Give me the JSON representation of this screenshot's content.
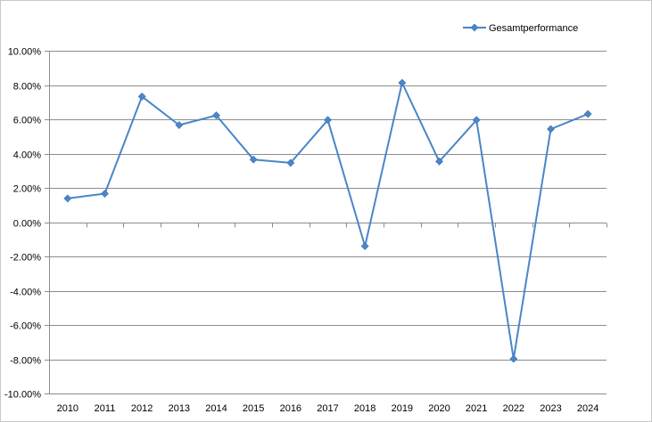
{
  "chart_data": {
    "type": "line",
    "title": "",
    "xlabel": "",
    "ylabel": "",
    "x": [
      "2010",
      "2011",
      "2012",
      "2013",
      "2014",
      "2015",
      "2016",
      "2017",
      "2018",
      "2019",
      "2020",
      "2021",
      "2022",
      "2023",
      "2024"
    ],
    "series": [
      {
        "name": "Gesamtperformance",
        "color": "#4a86c8",
        "marker": "diamond",
        "values": [
          1.38,
          1.66,
          7.33,
          5.66,
          6.23,
          3.65,
          3.46,
          5.96,
          -1.4,
          8.13,
          3.54,
          5.96,
          -7.98,
          5.43,
          6.31
        ]
      }
    ],
    "ylim": [
      -10,
      10
    ],
    "y_ticks": [
      "10.00%",
      "8.00%",
      "6.00%",
      "4.00%",
      "2.00%",
      "0.00%",
      "-2.00%",
      "-4.00%",
      "-6.00%",
      "-8.00%",
      "-10.00%"
    ],
    "y_tick_values": [
      10,
      8,
      6,
      4,
      2,
      0,
      -2,
      -4,
      -6,
      -8,
      -10
    ],
    "grid": true,
    "legend_position": "top-right",
    "gridline_color": "#8c8c8c",
    "axis_color": "#8c8c8c"
  }
}
